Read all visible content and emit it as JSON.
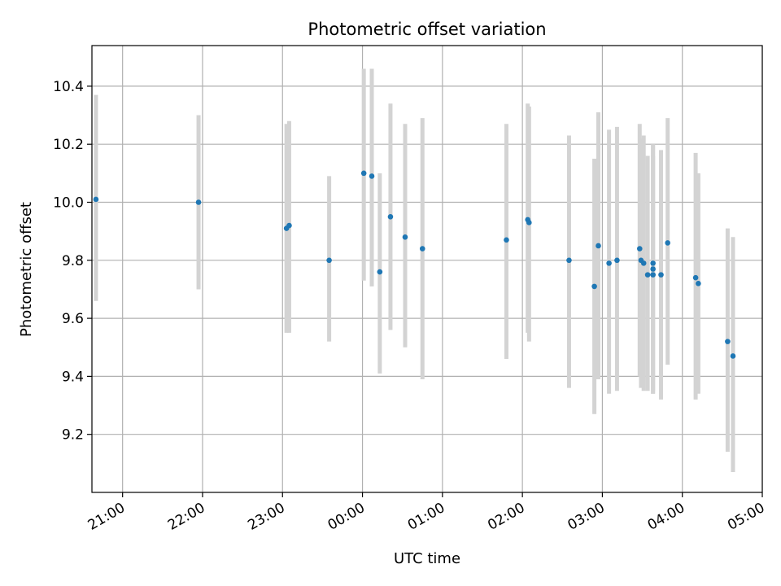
{
  "chart_data": {
    "type": "scatter",
    "title": "Photometric offset variation",
    "xlabel": "UTC time",
    "ylabel": "Photometric offset",
    "x_axis_kind": "time",
    "grid": true,
    "colors": {
      "point": "#1f77b4",
      "errorbar": "#d3d3d3",
      "grid": "#b0b0b0",
      "axes": "#000000"
    },
    "xlim": [
      "20:37",
      "05:00"
    ],
    "ylim": [
      9.0,
      10.54
    ],
    "x_ticks": [
      "21:00",
      "22:00",
      "23:00",
      "00:00",
      "01:00",
      "02:00",
      "03:00",
      "04:00",
      "05:00"
    ],
    "y_ticks": [
      "9.2",
      "9.4",
      "9.6",
      "9.8",
      "10.0",
      "10.2",
      "10.4"
    ],
    "points": [
      {
        "t": "20:40",
        "y": 10.01,
        "lo": 9.66,
        "hi": 10.37
      },
      {
        "t": "21:57",
        "y": 10.0,
        "lo": 9.7,
        "hi": 10.3
      },
      {
        "t": "23:03",
        "y": 9.91,
        "lo": 9.55,
        "hi": 10.27
      },
      {
        "t": "23:05",
        "y": 9.92,
        "lo": 9.55,
        "hi": 10.28
      },
      {
        "t": "23:35",
        "y": 9.8,
        "lo": 9.52,
        "hi": 10.09
      },
      {
        "t": "00:01",
        "y": 10.1,
        "lo": 9.73,
        "hi": 10.46
      },
      {
        "t": "00:07",
        "y": 10.09,
        "lo": 9.71,
        "hi": 10.46
      },
      {
        "t": "00:13",
        "y": 9.76,
        "lo": 9.41,
        "hi": 10.1
      },
      {
        "t": "00:21",
        "y": 9.95,
        "lo": 9.56,
        "hi": 10.34
      },
      {
        "t": "00:32",
        "y": 9.88,
        "lo": 9.5,
        "hi": 10.27
      },
      {
        "t": "00:45",
        "y": 9.84,
        "lo": 9.39,
        "hi": 10.29
      },
      {
        "t": "01:48",
        "y": 9.87,
        "lo": 9.46,
        "hi": 10.27
      },
      {
        "t": "02:04",
        "y": 9.94,
        "lo": 9.55,
        "hi": 10.34
      },
      {
        "t": "02:05",
        "y": 9.93,
        "lo": 9.52,
        "hi": 10.33
      },
      {
        "t": "02:35",
        "y": 9.8,
        "lo": 9.36,
        "hi": 10.23
      },
      {
        "t": "02:54",
        "y": 9.71,
        "lo": 9.27,
        "hi": 10.15
      },
      {
        "t": "02:57",
        "y": 9.85,
        "lo": 9.39,
        "hi": 10.31
      },
      {
        "t": "03:05",
        "y": 9.79,
        "lo": 9.34,
        "hi": 10.25
      },
      {
        "t": "03:11",
        "y": 9.8,
        "lo": 9.35,
        "hi": 10.26
      },
      {
        "t": "03:28",
        "y": 9.84,
        "lo": 9.4,
        "hi": 10.27
      },
      {
        "t": "03:29",
        "y": 9.8,
        "lo": 9.36,
        "hi": 10.22
      },
      {
        "t": "03:31",
        "y": 9.79,
        "lo": 9.35,
        "hi": 10.23
      },
      {
        "t": "03:34",
        "y": 9.75,
        "lo": 9.35,
        "hi": 10.16
      },
      {
        "t": "03:38",
        "y": 9.79,
        "lo": 9.34,
        "hi": 10.2
      },
      {
        "t": "03:38",
        "y": 9.77,
        "lo": 9.34,
        "hi": 10.2
      },
      {
        "t": "03:38",
        "y": 9.75,
        "lo": 9.35,
        "hi": 10.16
      },
      {
        "t": "03:44",
        "y": 9.75,
        "lo": 9.32,
        "hi": 10.18
      },
      {
        "t": "03:49",
        "y": 9.86,
        "lo": 9.44,
        "hi": 10.29
      },
      {
        "t": "04:10",
        "y": 9.74,
        "lo": 9.32,
        "hi": 10.17
      },
      {
        "t": "04:12",
        "y": 9.72,
        "lo": 9.34,
        "hi": 10.1
      },
      {
        "t": "04:34",
        "y": 9.52,
        "lo": 9.14,
        "hi": 9.91
      },
      {
        "t": "04:38",
        "y": 9.47,
        "lo": 9.07,
        "hi": 9.88
      }
    ]
  }
}
